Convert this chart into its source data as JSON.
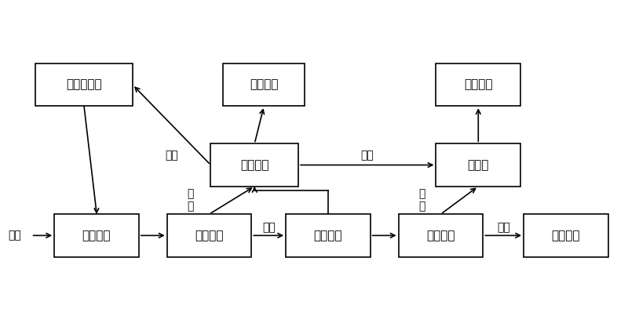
{
  "boxes": {
    "油性萃取剂": [
      0.055,
      0.68,
      0.155,
      0.13
    ],
    "油品加工": [
      0.355,
      0.68,
      0.13,
      0.13
    ],
    "污水处理": [
      0.695,
      0.68,
      0.135,
      0.13
    ],
    "油水分离": [
      0.335,
      0.435,
      0.14,
      0.13
    ],
    "污水池": [
      0.695,
      0.435,
      0.135,
      0.13
    ],
    "一次均质": [
      0.085,
      0.22,
      0.135,
      0.13
    ],
    "一次分离": [
      0.265,
      0.22,
      0.135,
      0.13
    ],
    "二次均质": [
      0.455,
      0.22,
      0.135,
      0.13
    ],
    "二次分离": [
      0.635,
      0.22,
      0.135,
      0.13
    ],
    "焚烧处理": [
      0.835,
      0.22,
      0.135,
      0.13
    ]
  },
  "background": "#ffffff",
  "box_facecolor": "#ffffff",
  "box_edgecolor": "#000000",
  "text_color": "#000000",
  "arrow_color": "#000000",
  "lw": 1.2,
  "fontsize": 11,
  "label_fontsize": 10
}
